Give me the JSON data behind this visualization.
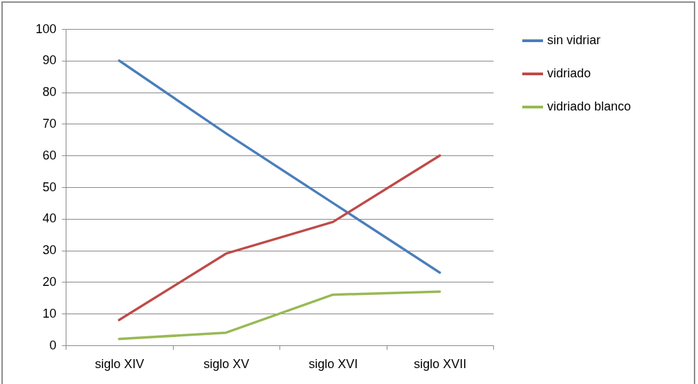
{
  "chart_data": {
    "type": "line",
    "categories": [
      "siglo XIV",
      "siglo XV",
      "siglo XVI",
      "siglo XVII"
    ],
    "series": [
      {
        "name": "sin vidriar",
        "color": "#4a7ebb",
        "values": [
          90,
          67,
          45,
          23
        ]
      },
      {
        "name": "vidriado",
        "color": "#be4b48",
        "values": [
          8,
          29,
          39,
          60
        ]
      },
      {
        "name": "vidriado blanco",
        "color": "#98b954",
        "values": [
          2,
          4,
          16,
          17
        ]
      }
    ],
    "ylim": [
      0,
      100
    ],
    "yticks": [
      0,
      10,
      20,
      30,
      40,
      50,
      60,
      70,
      80,
      90,
      100
    ],
    "grid": "y",
    "legend": "right",
    "marker": "none",
    "line_style": "solid"
  }
}
